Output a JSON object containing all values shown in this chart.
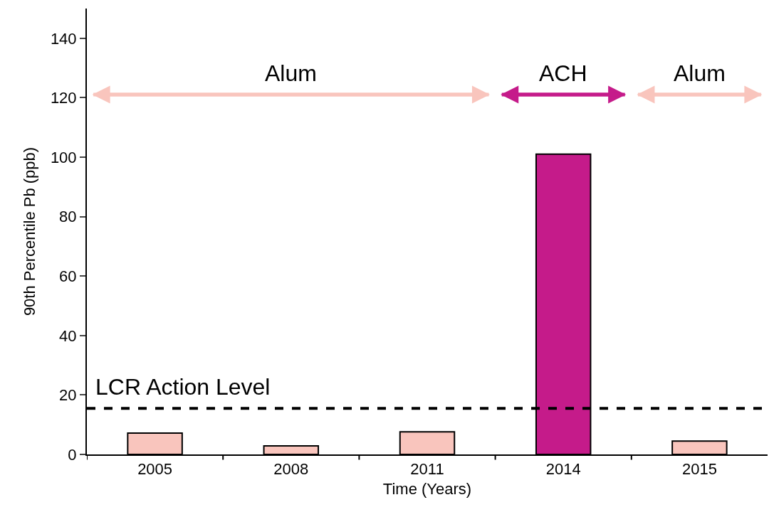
{
  "chart_data": {
    "type": "bar",
    "xlabel": "Time (Years)",
    "ylabel": "90th Percentile Pb (ppb)",
    "categories": [
      "2005",
      "2008",
      "2011",
      "2014",
      "2015"
    ],
    "values": [
      7.2,
      2.9,
      7.6,
      101,
      4.5
    ],
    "colors": [
      "#f9c5bd",
      "#f9c5bd",
      "#f9c5bd",
      "#c51b8a",
      "#f9c5bd"
    ],
    "ylim": [
      0,
      150
    ],
    "yticks": [
      0,
      20,
      40,
      60,
      80,
      100,
      120,
      140
    ],
    "ref_lines": [
      {
        "axis": "y",
        "value": 15.5,
        "label": "LCR Action Level",
        "color": "#000000",
        "line_style": "dashed"
      }
    ],
    "annotations": [
      "Alum",
      "ACH",
      "Alum"
    ]
  }
}
